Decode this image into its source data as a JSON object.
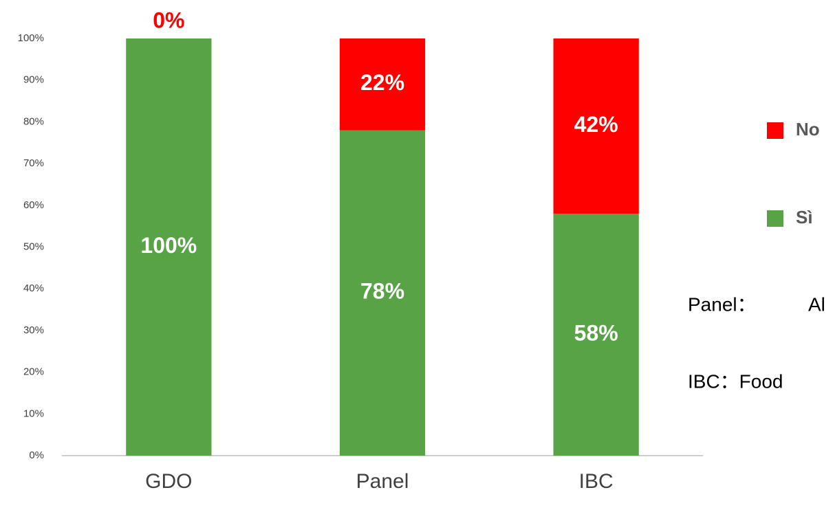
{
  "chart_data": {
    "type": "stacked_bar",
    "categories": [
      "GDO",
      "Panel",
      "IBC"
    ],
    "series": [
      {
        "name": "Sì",
        "color": "#58a346",
        "values": [
          100,
          78,
          58
        ],
        "value_labels": [
          "100%",
          "78%",
          "58%"
        ]
      },
      {
        "name": "No",
        "color": "#ff0000",
        "values": [
          0,
          22,
          42
        ],
        "value_labels": [
          "0%",
          "22%",
          "42%"
        ]
      }
    ],
    "ylim": [
      0,
      100
    ],
    "yticks": [
      {
        "value": 0,
        "label": "0%"
      },
      {
        "value": 10,
        "label": "10%"
      },
      {
        "value": 20,
        "label": "20%"
      },
      {
        "value": 30,
        "label": "30%"
      },
      {
        "value": 40,
        "label": "40%"
      },
      {
        "value": 50,
        "label": "50%"
      },
      {
        "value": 60,
        "label": "60%"
      },
      {
        "value": 70,
        "label": "70%"
      },
      {
        "value": 80,
        "label": "80%"
      },
      {
        "value": 90,
        "label": "90%"
      },
      {
        "value": 100,
        "label": "100%"
      }
    ],
    "grid": false,
    "legend": "right",
    "annotations": [
      "Panel：",
      "Al",
      "IBC：Food"
    ]
  }
}
